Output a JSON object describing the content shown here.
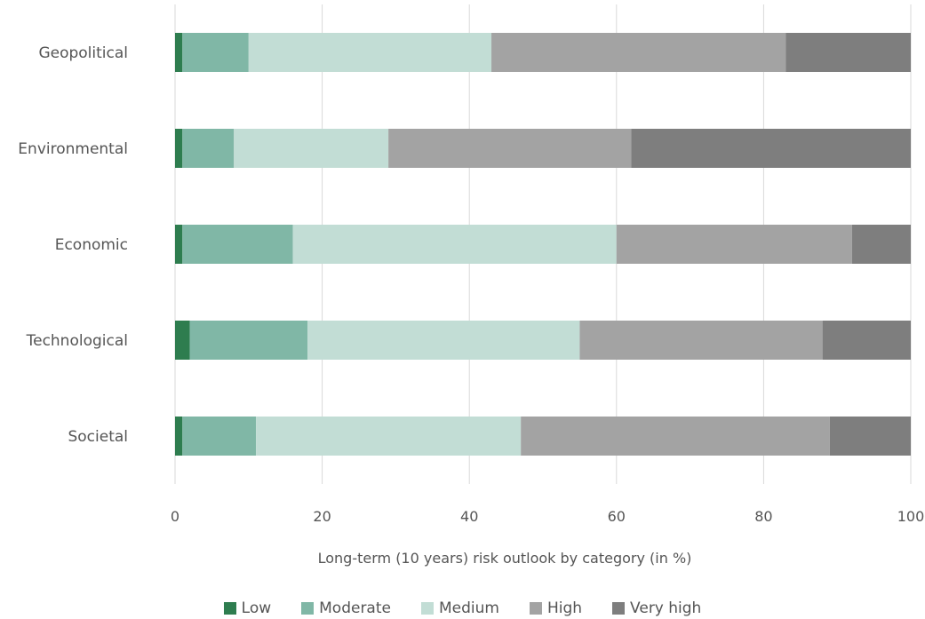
{
  "chart_data": {
    "type": "bar",
    "orientation": "horizontal",
    "stacked": true,
    "categories": [
      "Geopolitical",
      "Environmental",
      "Economic",
      "Technological",
      "Societal"
    ],
    "series": [
      {
        "name": "Low",
        "color": "#2e7d4f",
        "values": [
          1,
          1,
          1,
          2,
          1
        ]
      },
      {
        "name": "Moderate",
        "color": "#80b7a6",
        "values": [
          9,
          7,
          15,
          16,
          10
        ]
      },
      {
        "name": "Medium",
        "color": "#c2ddd5",
        "values": [
          33,
          21,
          44,
          37,
          36
        ]
      },
      {
        "name": "High",
        "color": "#a3a3a3",
        "values": [
          40,
          33,
          32,
          33,
          42
        ]
      },
      {
        "name": "Very high",
        "color": "#7e7e7e",
        "values": [
          17,
          38,
          8,
          12,
          11
        ]
      }
    ],
    "xlabel": "Long-term (10 years) risk outlook by category (in %)",
    "ylabel": "",
    "xlim": [
      0,
      100
    ],
    "xticks": [
      "0",
      "20",
      "40",
      "60",
      "80",
      "100"
    ],
    "grid": "vertical",
    "legend_position": "bottom"
  }
}
